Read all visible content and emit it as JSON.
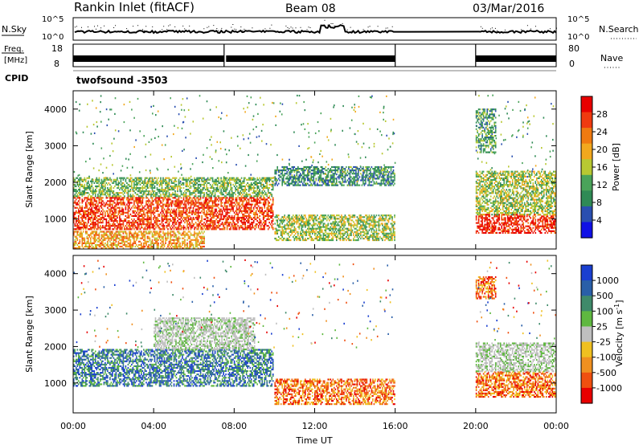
{
  "header": {
    "station": "Rankin Inlet (fitACF)",
    "beam": "Beam 08",
    "date": "03/Mar/2016"
  },
  "top_panels": {
    "nsky_label": "N.Sky",
    "nsky_ticks": [
      "10^5",
      "10^0"
    ],
    "nsearch_label": "N.Search",
    "nsearch_ticks": [
      "10^5",
      "10^0"
    ],
    "freq_label": "Freq.",
    "freq_unit": "[MHz]",
    "freq_ticks": [
      "18",
      "8"
    ],
    "nave_label": "Nave",
    "nave_ticks": [
      "80",
      "0"
    ],
    "cpid_label": "CPID",
    "cpid_value": "twofsound -3503"
  },
  "colors": {
    "power": [
      "#1010e6",
      "#2a4fb0",
      "#2f8a55",
      "#4aa35a",
      "#b8c832",
      "#f2a81e",
      "#f07a10",
      "#f03a10",
      "#e80000"
    ],
    "velocity": [
      "#1a3fd0",
      "#2a5fa8",
      "#3f8a6a",
      "#5fb840",
      "#bfbfbf",
      "#f0c020",
      "#f09020",
      "#f05010",
      "#e80000"
    ]
  },
  "chart_data": [
    {
      "type": "heatmap",
      "name": "power",
      "title": "",
      "xlabel": "",
      "ylabel": "Slant Range [km]",
      "xlim": [
        "00:00",
        "24:00"
      ],
      "ylim": [
        180,
        4500
      ],
      "x_ticks": [
        "00:00",
        "04:00",
        "08:00",
        "12:00",
        "16:00",
        "20:00",
        "00:00"
      ],
      "y_ticks": [
        1000,
        2000,
        3000,
        4000
      ],
      "colorbar": {
        "label": "Power [dB]",
        "ticks": [
          "4",
          "8",
          "12",
          "16",
          "20",
          "24",
          "28"
        ],
        "range": [
          0,
          30
        ]
      },
      "data_gaps_ut": [
        [
          "16:00",
          "20:00"
        ]
      ],
      "regions": [
        {
          "t0": 0.0,
          "t1": 9.9,
          "r0": 700,
          "r1": 1600,
          "value": 26
        },
        {
          "t0": 0.0,
          "t1": 9.9,
          "r0": 1600,
          "r1": 2100,
          "value": 12
        },
        {
          "t0": 0.0,
          "t1": 6.5,
          "r0": 180,
          "r1": 650,
          "value": 20
        },
        {
          "t0": 10.0,
          "t1": 16.0,
          "r0": 400,
          "r1": 1100,
          "value": 14
        },
        {
          "t0": 10.0,
          "t1": 16.0,
          "r0": 1900,
          "r1": 2400,
          "value": 8
        },
        {
          "t0": 20.0,
          "t1": 24.0,
          "r0": 600,
          "r1": 1100,
          "value": 28
        },
        {
          "t0": 20.0,
          "t1": 24.0,
          "r0": 1100,
          "r1": 2300,
          "value": 14
        },
        {
          "t0": 20.0,
          "t1": 21.0,
          "r0": 2800,
          "r1": 4000,
          "value": 10
        }
      ]
    },
    {
      "type": "heatmap",
      "name": "velocity",
      "title": "",
      "xlabel": "Time UT",
      "ylabel": "Slant Range [km]",
      "xlim": [
        "00:00",
        "24:00"
      ],
      "ylim": [
        180,
        4500
      ],
      "x_ticks": [
        "00:00",
        "04:00",
        "08:00",
        "12:00",
        "16:00",
        "20:00",
        "00:00"
      ],
      "y_ticks": [
        1000,
        2000,
        3000,
        4000
      ],
      "colorbar": {
        "label": "Velocity [m s^-1]",
        "ticks": [
          "1000",
          "500",
          "100",
          "25",
          "-25",
          "-100",
          "-500",
          "-1000"
        ]
      },
      "data_gaps_ut": [
        [
          "16:00",
          "20:00"
        ]
      ],
      "regions": [
        {
          "t0": 0.0,
          "t1": 9.9,
          "r0": 900,
          "r1": 1900,
          "value": "toward"
        },
        {
          "t0": 4.0,
          "t1": 9.0,
          "r0": 1900,
          "r1": 2800,
          "value": "ground"
        },
        {
          "t0": 10.0,
          "t1": 16.0,
          "r0": 400,
          "r1": 1100,
          "value": "away"
        },
        {
          "t0": 20.0,
          "t1": 24.0,
          "r0": 600,
          "r1": 1300,
          "value": "away"
        },
        {
          "t0": 20.0,
          "t1": 24.0,
          "r0": 1300,
          "r1": 2100,
          "value": "ground"
        },
        {
          "t0": 20.0,
          "t1": 21.0,
          "r0": 3300,
          "r1": 3900,
          "value": "away"
        }
      ]
    }
  ]
}
